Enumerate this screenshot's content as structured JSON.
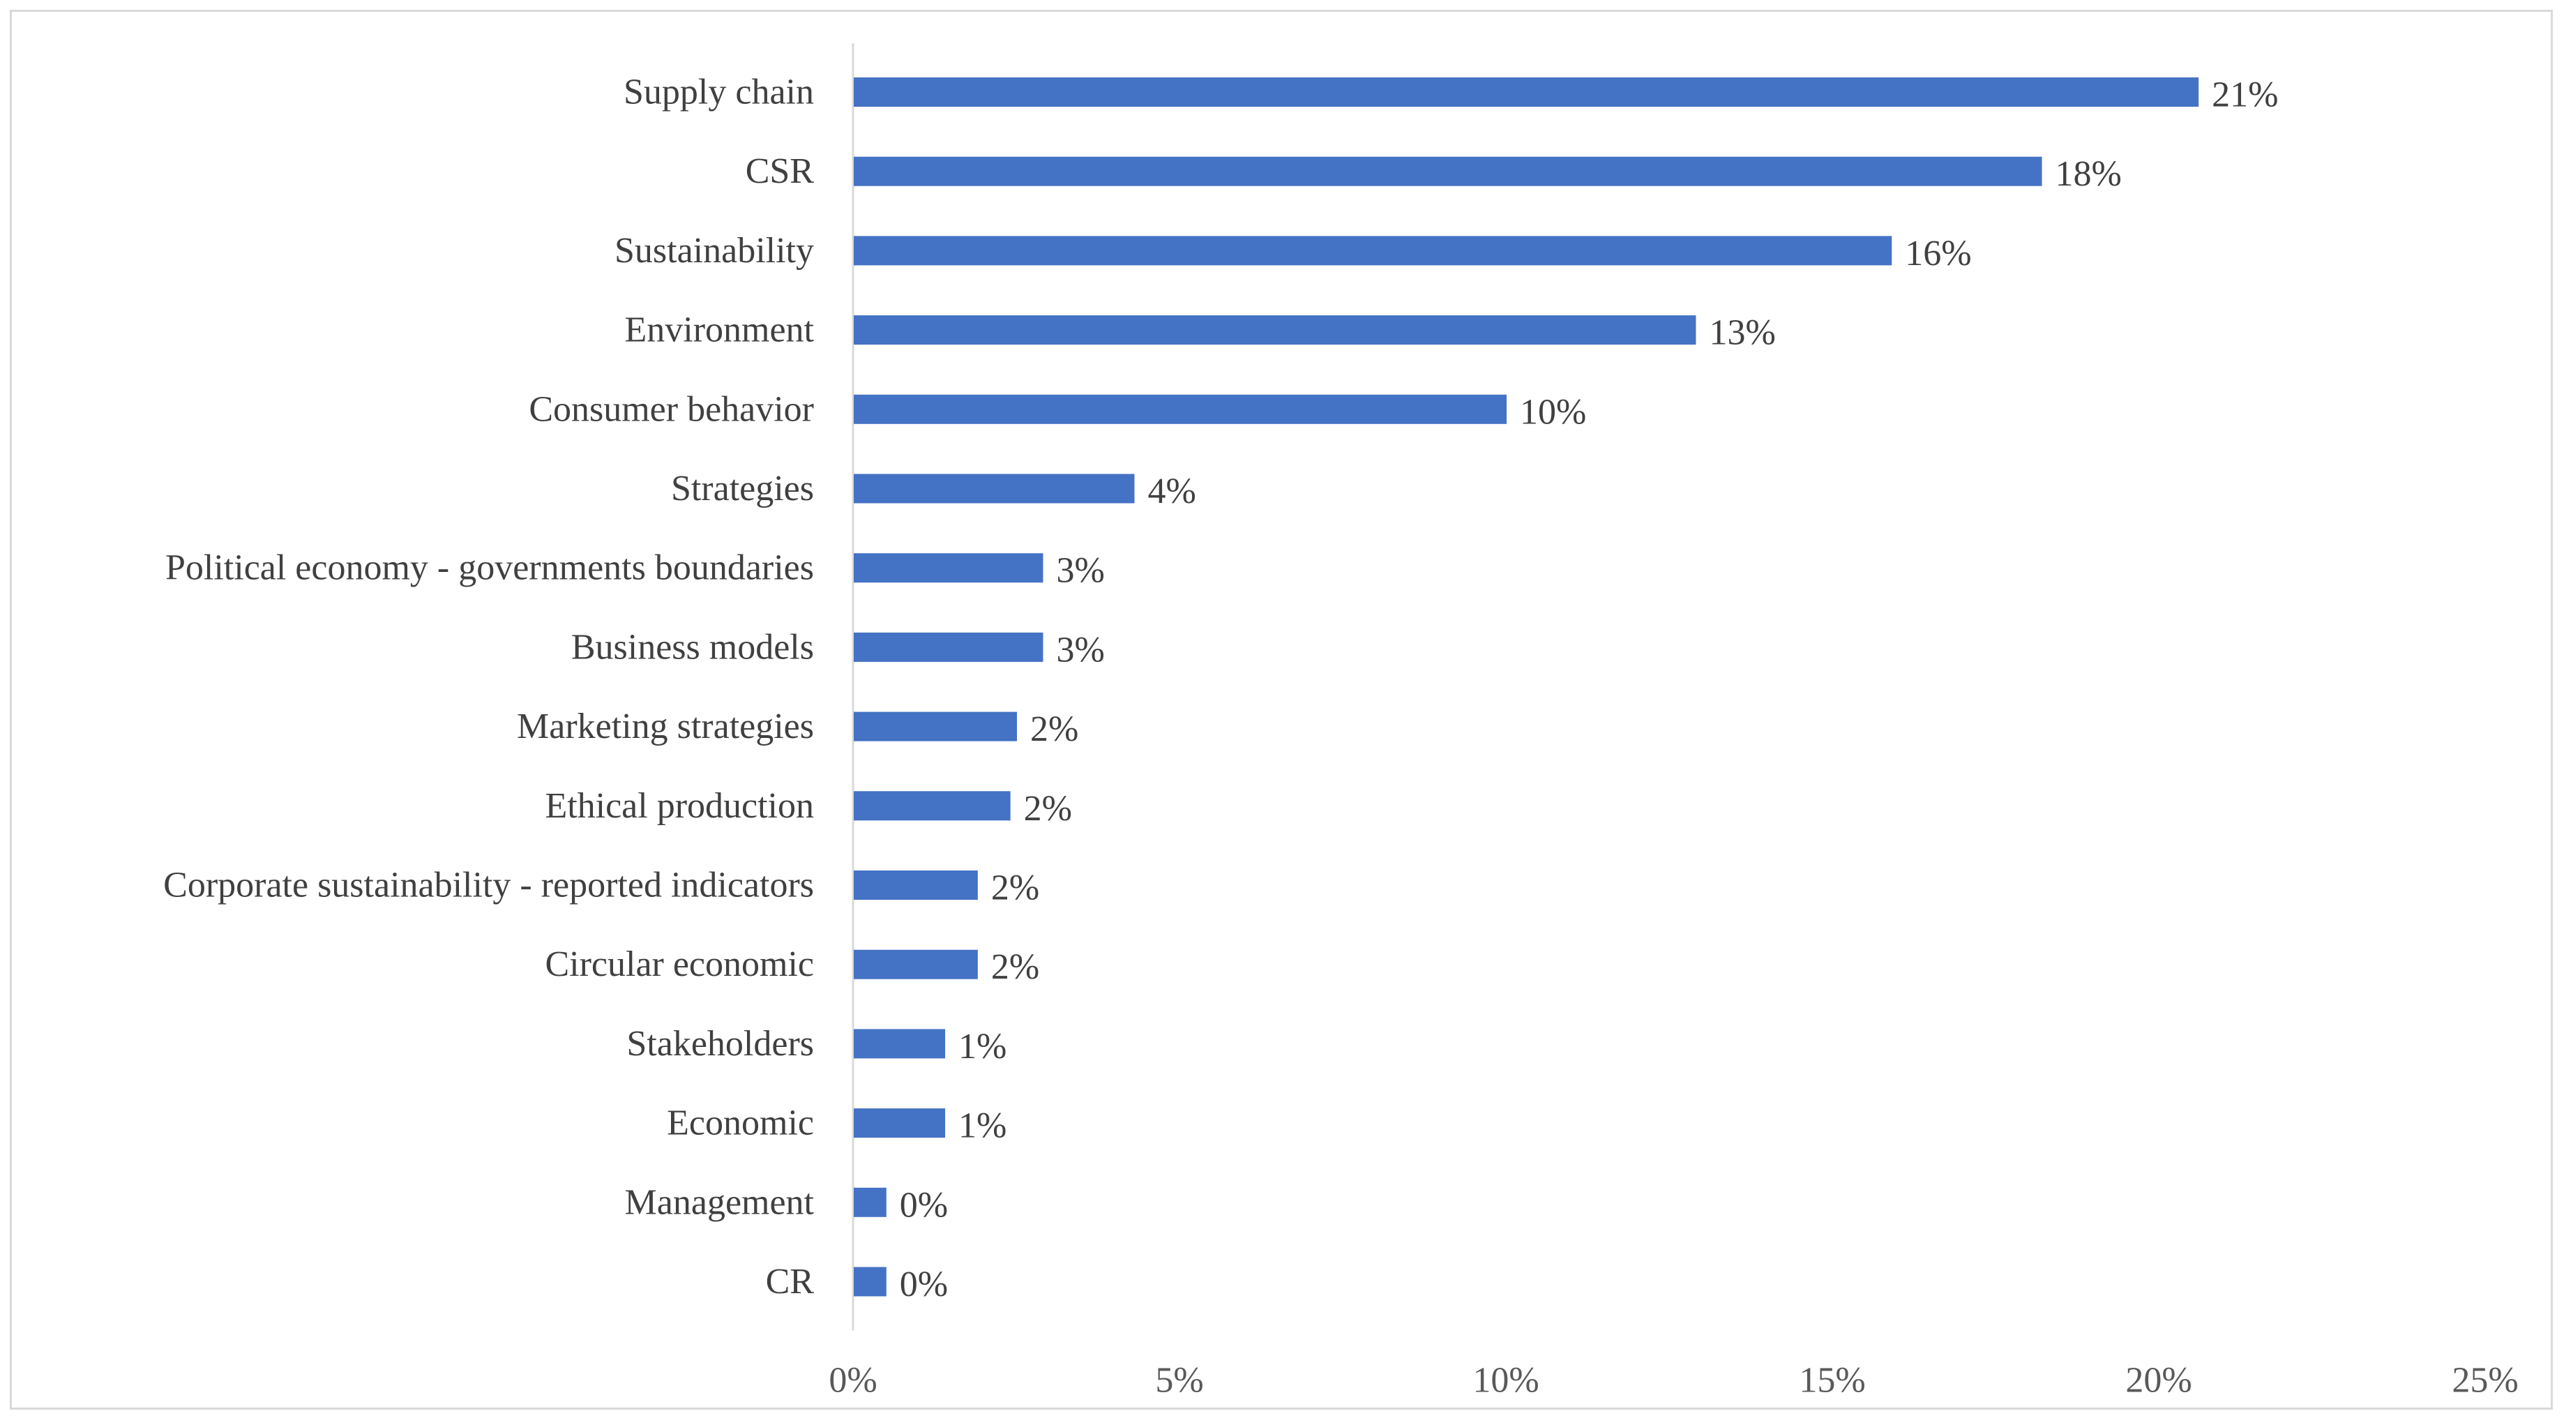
{
  "chart_data": {
    "type": "bar",
    "orientation": "horizontal",
    "title": "",
    "xlabel": "",
    "ylabel": "",
    "xlim": [
      0,
      25
    ],
    "grid": false,
    "bar_color": "#4472C4",
    "categories": [
      "Supply chain",
      "CSR",
      "Sustainability",
      "Environment",
      "Consumer behavior",
      "Strategies",
      "Political economy - governments  boundaries",
      "Business models",
      "Marketing strategies",
      "Ethical production",
      "Corporate sustainability - reported indicators",
      "Circular economic",
      "Stakeholders",
      "Economic",
      "Management",
      "CR"
    ],
    "values": [
      20.6,
      18.2,
      15.9,
      12.9,
      10.0,
      4.3,
      2.9,
      2.9,
      2.5,
      2.4,
      1.9,
      1.9,
      1.4,
      1.4,
      0.5,
      0.5
    ],
    "data_labels": [
      "21%",
      "18%",
      "16%",
      "13%",
      "10%",
      "4%",
      "3%",
      "3%",
      "2%",
      "2%",
      "2%",
      "2%",
      "1%",
      "1%",
      "0%",
      "0%"
    ],
    "x_ticks": [
      0,
      5,
      10,
      15,
      20,
      25
    ],
    "x_tick_labels": [
      "0%",
      "5%",
      "10%",
      "15%",
      "20%",
      "25%"
    ]
  }
}
